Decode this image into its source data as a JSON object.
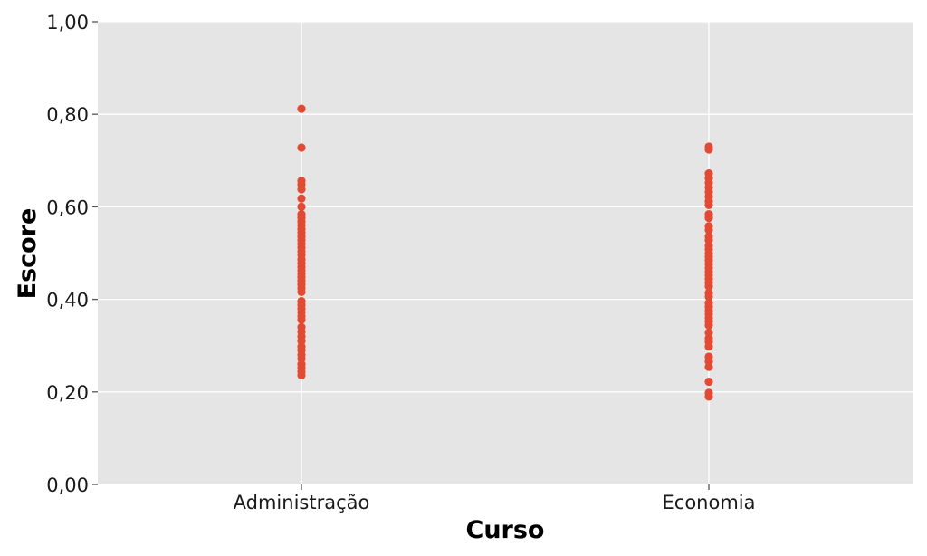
{
  "chart_data": {
    "type": "scatter",
    "title": "",
    "xlabel": "Curso",
    "ylabel": "Escore",
    "categories": [
      "Administração",
      "Economia"
    ],
    "ylim": [
      0,
      1
    ],
    "y_ticks": [
      {
        "value": 0.0,
        "label": "0,00"
      },
      {
        "value": 0.2,
        "label": "0,20"
      },
      {
        "value": 0.4,
        "label": "0,40"
      },
      {
        "value": 0.6,
        "label": "0,60"
      },
      {
        "value": 0.8,
        "label": "0,80"
      },
      {
        "value": 1.0,
        "label": "1,00"
      }
    ],
    "grid": true,
    "background_color": "#e5e5e5",
    "grid_color": "#ffffff",
    "point_color": "#e24a33",
    "series": [
      {
        "category": "Administração",
        "values": [
          0.812,
          0.728,
          0.656,
          0.648,
          0.638,
          0.618,
          0.6,
          0.584,
          0.576,
          0.568,
          0.56,
          0.552,
          0.544,
          0.536,
          0.528,
          0.52,
          0.512,
          0.504,
          0.496,
          0.486,
          0.478,
          0.47,
          0.462,
          0.455,
          0.448,
          0.44,
          0.432,
          0.424,
          0.416,
          0.396,
          0.388,
          0.38,
          0.372,
          0.364,
          0.356,
          0.34,
          0.33,
          0.32,
          0.31,
          0.298,
          0.29,
          0.28,
          0.272,
          0.26,
          0.252,
          0.244,
          0.236
        ]
      },
      {
        "category": "Economia",
        "values": [
          0.73,
          0.724,
          0.672,
          0.662,
          0.652,
          0.642,
          0.632,
          0.622,
          0.612,
          0.604,
          0.584,
          0.576,
          0.558,
          0.55,
          0.536,
          0.528,
          0.516,
          0.508,
          0.5,
          0.492,
          0.484,
          0.476,
          0.468,
          0.46,
          0.452,
          0.444,
          0.436,
          0.428,
          0.414,
          0.406,
          0.392,
          0.384,
          0.376,
          0.368,
          0.36,
          0.352,
          0.344,
          0.328,
          0.316,
          0.308,
          0.298,
          0.276,
          0.266,
          0.254,
          0.222,
          0.198,
          0.19
        ]
      }
    ]
  }
}
